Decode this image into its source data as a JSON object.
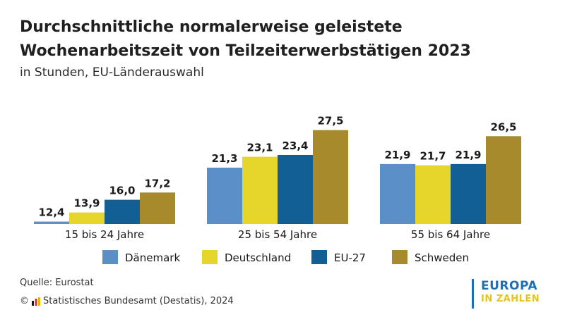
{
  "header": {
    "title": "Durchschnittliche normalerweise geleistete Wochenarbeitszeit von Teilzeiterwerbstätigen 2023",
    "subtitle": "in Stunden, EU-Länderauswahl"
  },
  "chart_data": {
    "type": "bar",
    "categories": [
      "15 bis 24 Jahre",
      "25 bis 54 Jahre",
      "55 bis 64 Jahre"
    ],
    "series": [
      {
        "name": "Dänemark",
        "color": "#5b8fc8",
        "values": [
          12.4,
          21.3,
          21.9
        ],
        "labels": [
          "12,4",
          "21,3",
          "21,9"
        ]
      },
      {
        "name": "Deutschland",
        "color": "#e6d52b",
        "values": [
          13.9,
          23.1,
          21.7
        ],
        "labels": [
          "13,9",
          "23,1",
          "21,7"
        ]
      },
      {
        "name": "EU-27",
        "color": "#115f95",
        "values": [
          16.0,
          23.4,
          21.9
        ],
        "labels": [
          "16,0",
          "23,4",
          "21,9"
        ]
      },
      {
        "name": "Schweden",
        "color": "#a68a2c",
        "values": [
          17.2,
          27.5,
          26.5
        ],
        "labels": [
          "17,2",
          "27,5",
          "26,5"
        ]
      }
    ],
    "baseline": 12,
    "ylim": [
      12,
      28
    ],
    "grid": false,
    "legend_position": "bottom"
  },
  "footer": {
    "source": "Quelle: Eurostat",
    "copyright": "© ",
    "copyright_org": "Statistisches Bundesamt (Destatis), 2024"
  },
  "badge": {
    "line1": "EUROPA",
    "line2": "IN ZAHLEN"
  }
}
